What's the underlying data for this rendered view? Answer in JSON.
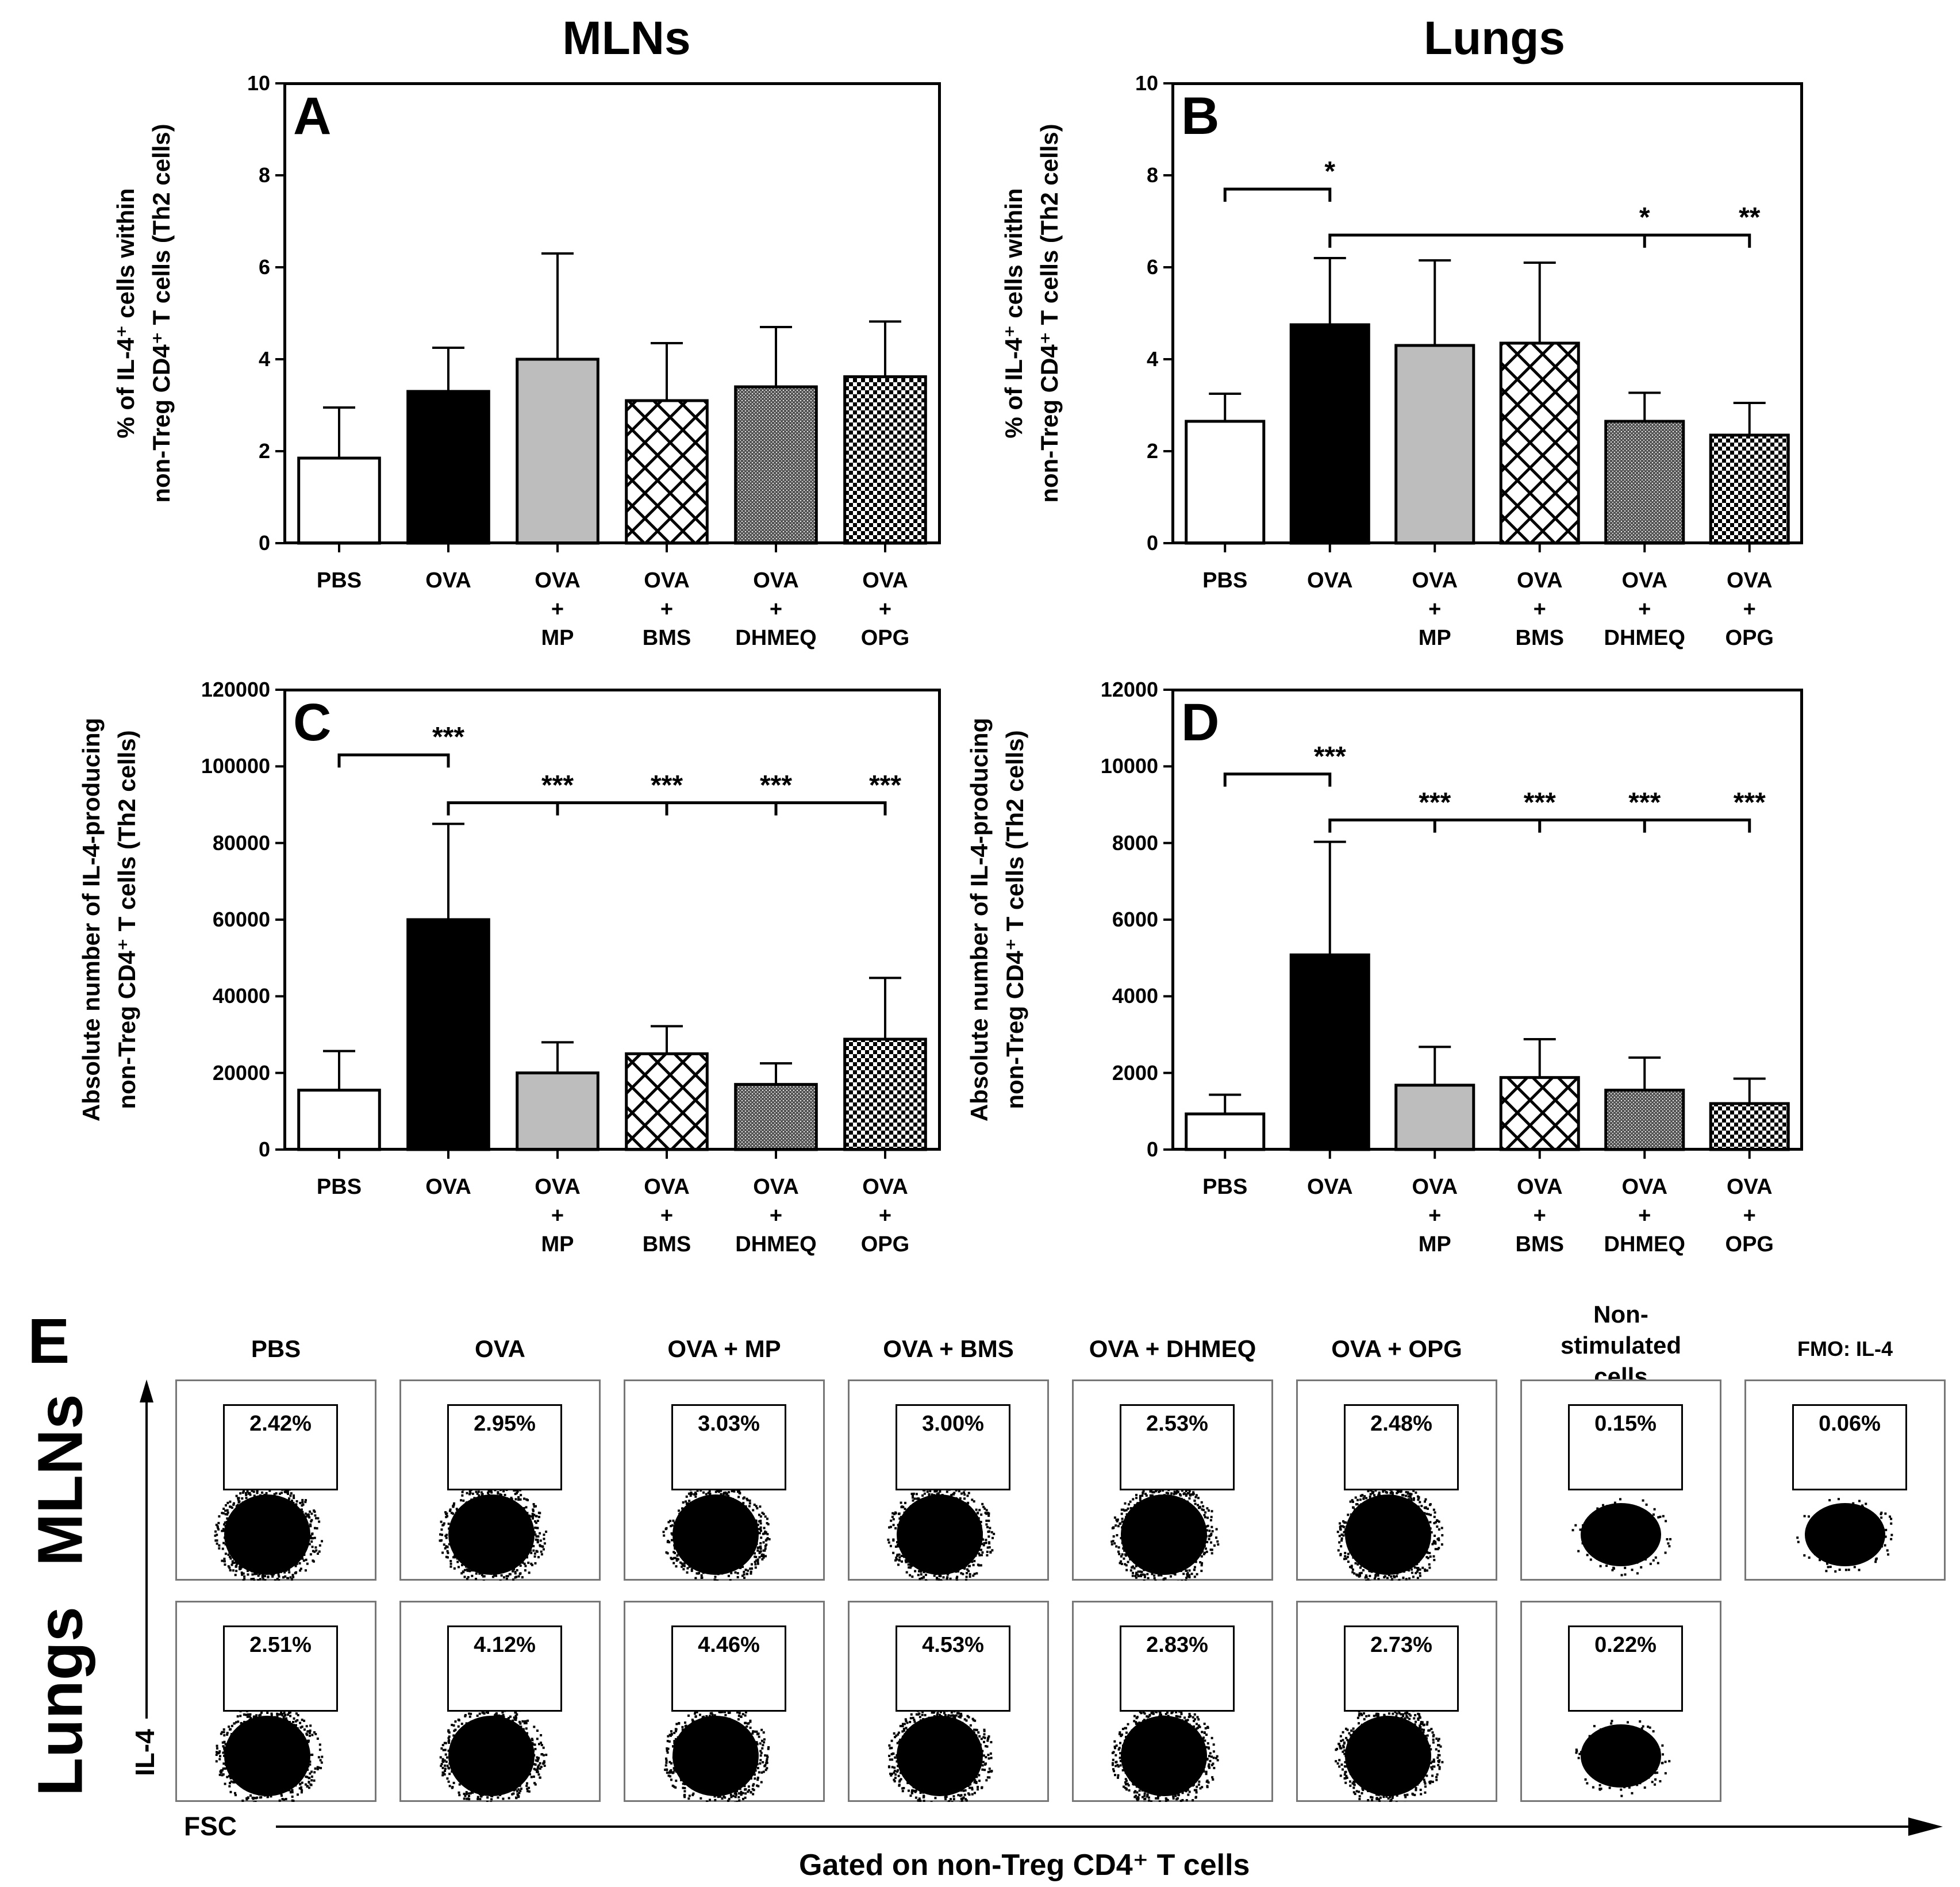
{
  "column_titles": {
    "left": "MLNs",
    "right": "Lungs"
  },
  "x_categories": [
    {
      "line1": "PBS",
      "line2": "",
      "line3": ""
    },
    {
      "line1": "OVA",
      "line2": "",
      "line3": ""
    },
    {
      "line1": "OVA",
      "line2": "+",
      "line3": "MP"
    },
    {
      "line1": "OVA",
      "line2": "+",
      "line3": "BMS"
    },
    {
      "line1": "OVA",
      "line2": "+",
      "line3": "DHMEQ"
    },
    {
      "line1": "OVA",
      "line2": "+",
      "line3": "OPG"
    }
  ],
  "colors": {
    "pbs": "#ffffff",
    "ova": "#000000",
    "mp": "#bdbdbd",
    "bms": "crosshatch",
    "dhmeq": "fine-dots",
    "opg": "checker"
  },
  "chart_data": [
    {
      "id": "A",
      "letter": "A",
      "type": "bar",
      "ylabel_line1": "% of IL-4⁺ cells within",
      "ylabel_line2": "non-Treg CD4⁺ T cells (Th2 cells)",
      "yticks": [
        "0",
        "2",
        "4",
        "6",
        "8",
        "10"
      ],
      "ylim": [
        0,
        10
      ],
      "values": [
        1.85,
        3.3,
        4.0,
        3.1,
        3.4,
        3.62
      ],
      "errors": [
        1.1,
        0.95,
        2.3,
        1.25,
        1.3,
        1.2
      ],
      "significance": []
    },
    {
      "id": "B",
      "letter": "B",
      "type": "bar",
      "ylabel_line1": "% of IL-4⁺ cells within",
      "ylabel_line2": "non-Treg CD4⁺ T cells (Th2 cells)",
      "yticks": [
        "0",
        "2",
        "4",
        "6",
        "8",
        "10"
      ],
      "ylim": [
        0,
        10
      ],
      "values": [
        2.65,
        4.75,
        4.3,
        4.35,
        2.65,
        2.35
      ],
      "errors": [
        0.6,
        1.45,
        1.85,
        1.75,
        0.62,
        0.7
      ],
      "significance": [
        {
          "from": 0,
          "to": 1,
          "level": 7.7,
          "labels": [
            {
              "at": 1,
              "text": "*"
            }
          ]
        },
        {
          "from": 1,
          "to": 5,
          "level": 6.7,
          "labels": [
            {
              "at": 4,
              "text": "*"
            },
            {
              "at": 5,
              "text": "**"
            }
          ]
        }
      ]
    },
    {
      "id": "C",
      "letter": "C",
      "type": "bar",
      "ylabel_line1": "Absolute number of IL-4-producing",
      "ylabel_line2": "non-Treg CD4⁺ T cells (Th2 cells)",
      "yticks": [
        "0",
        "20000",
        "40000",
        "60000",
        "80000",
        "100000",
        "120000"
      ],
      "ylim": [
        0,
        120000
      ],
      "values": [
        15500,
        60000,
        20000,
        25000,
        17000,
        28800
      ],
      "errors": [
        10200,
        25000,
        8000,
        7200,
        5500,
        16000
      ],
      "significance": [
        {
          "from": 0,
          "to": 1,
          "level": 103000,
          "labels": [
            {
              "at": 1,
              "text": "***"
            }
          ]
        },
        {
          "from": 1,
          "to": 5,
          "level": 90500,
          "labels": [
            {
              "at": 2,
              "text": "***"
            },
            {
              "at": 3,
              "text": "***"
            },
            {
              "at": 4,
              "text": "***"
            },
            {
              "at": 5,
              "text": "***"
            }
          ]
        }
      ]
    },
    {
      "id": "D",
      "letter": "D",
      "type": "bar",
      "ylabel_line1": "Absolute number of IL-4-producing",
      "ylabel_line2": "non-Treg CD4⁺ T cells (Th2 cells)",
      "yticks": [
        "0",
        "2000",
        "4000",
        "6000",
        "8000",
        "10000",
        "12000"
      ],
      "ylim": [
        0,
        12000
      ],
      "values": [
        930,
        5080,
        1680,
        1880,
        1550,
        1200
      ],
      "errors": [
        500,
        2950,
        1000,
        1000,
        850,
        650
      ],
      "significance": [
        {
          "from": 0,
          "to": 1,
          "level": 9800,
          "labels": [
            {
              "at": 1,
              "text": "***"
            }
          ]
        },
        {
          "from": 1,
          "to": 5,
          "level": 8600,
          "labels": [
            {
              "at": 2,
              "text": "***"
            },
            {
              "at": 3,
              "text": "***"
            },
            {
              "at": 4,
              "text": "***"
            },
            {
              "at": 5,
              "text": "***"
            }
          ]
        }
      ]
    }
  ],
  "flow": {
    "letter": "E",
    "columns": [
      "PBS",
      "OVA",
      "OVA + MP",
      "OVA + BMS",
      "OVA + DHMEQ",
      "OVA + OPG",
      "Non-stimulated cells",
      "FMO: IL-4"
    ],
    "row_labels": [
      "MLNs",
      "Lungs"
    ],
    "mlns_percent": [
      "2.42%",
      "2.95%",
      "3.03%",
      "3.00%",
      "2.53%",
      "2.48%",
      "0.15%",
      "0.06%"
    ],
    "lungs_percent": [
      "2.51%",
      "4.12%",
      "4.46%",
      "4.53%",
      "2.83%",
      "2.73%",
      "0.22%"
    ],
    "y_axis_label": "IL-4",
    "x_axis_label": "FSC",
    "footer": "Gated on non-Treg CD4⁺ T cells"
  }
}
